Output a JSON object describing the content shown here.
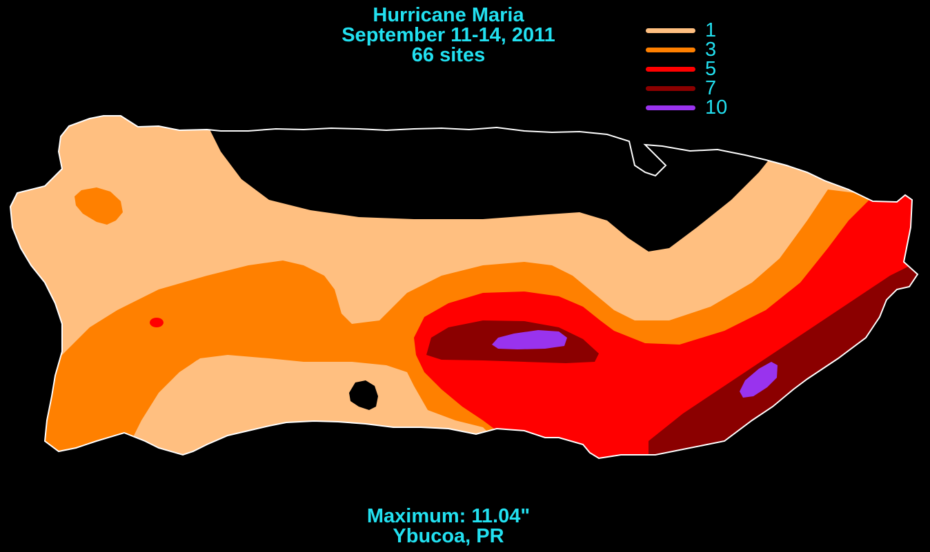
{
  "title": {
    "line1": "Hurricane Maria",
    "line2": "September 11-14, 2011",
    "line3": "66 sites"
  },
  "legend": {
    "items": [
      {
        "label": "1",
        "color": "#ffbf80"
      },
      {
        "label": "3",
        "color": "#ff8000"
      },
      {
        "label": "5",
        "color": "#ff0000"
      },
      {
        "label": "7",
        "color": "#8b0000"
      },
      {
        "label": "10",
        "color": "#9933ee"
      }
    ]
  },
  "footer": {
    "max_line": "Maximum:  11.04\"",
    "location_line": "Ybucoa, PR"
  },
  "colors": {
    "background": "#000000",
    "text": "#22e0f0",
    "outline": "#ffffff"
  }
}
